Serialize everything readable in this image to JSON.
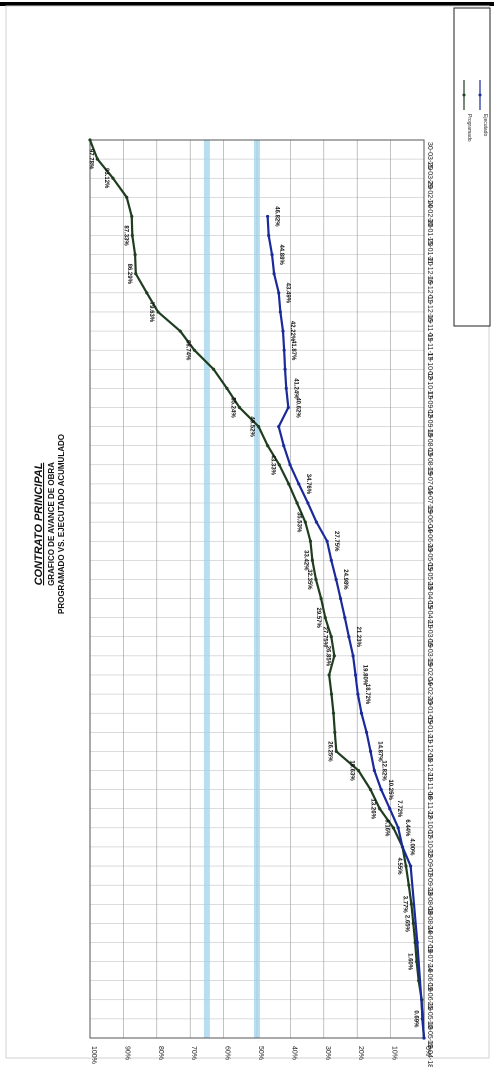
{
  "chart_data": {
    "type": "line",
    "title": "CONTRATO PRINCIPAL",
    "subtitle": [
      "GRAFICO DE AVANCE DE OBRA",
      "PROGRAMADO VS. EJECUTADO ACUMULADO"
    ],
    "x": [
      "19-04-18",
      "10-05-18",
      "25-05-18",
      "09-06-18",
      "24-06-18",
      "09-07-18",
      "24-07-18",
      "08-08-18",
      "23-08-18",
      "07-09-18",
      "22-09-18",
      "07-10-18",
      "22-10-18",
      "06-11-18",
      "21-11-18",
      "06-12-18",
      "21-12-18",
      "05-01-19",
      "20-01-19",
      "04-02-19",
      "19-02-19",
      "06-03-19",
      "21-03-19",
      "05-04-19",
      "20-04-19",
      "05-05-19",
      "20-05-19",
      "04-06-19",
      "19-06-19",
      "04-07-19",
      "19-07-19",
      "03-08-19",
      "18-08-19",
      "02-09-19",
      "17-09-19",
      "02-10-19",
      "17-10-19",
      "01-11-19",
      "16-11-19",
      "01-12-19",
      "16-12-19",
      "31-12-19",
      "15-01-20",
      "30-01-20",
      "14-02-20",
      "29-02-20",
      "15-03-20",
      "30-03-20"
    ],
    "y_ticks": [
      "0%",
      "10%",
      "20%",
      "30%",
      "40%",
      "50%",
      "60%",
      "70%",
      "80%",
      "90%",
      "100%"
    ],
    "ylim": [
      0,
      100
    ],
    "grid": true,
    "series": [
      {
        "name": "Programado",
        "color": "#1f3d1f",
        "points": [
          [
            0,
            0
          ],
          [
            1,
            0.5
          ],
          [
            2,
            0.69
          ],
          [
            3,
            1.6
          ],
          [
            4,
            2.2
          ],
          [
            5,
            2.65
          ],
          [
            6,
            3.2
          ],
          [
            7,
            3.77
          ],
          [
            8,
            4.55
          ],
          [
            9,
            5.4
          ],
          [
            10,
            6.44
          ],
          [
            11,
            9.16
          ],
          [
            12,
            13.26
          ],
          [
            13,
            16.0
          ],
          [
            14,
            19.63
          ],
          [
            15,
            26.25
          ],
          [
            16,
            26.7
          ],
          [
            17,
            27.1
          ],
          [
            18,
            27.7
          ],
          [
            19,
            28.4
          ],
          [
            20,
            26.85
          ],
          [
            21,
            27.75
          ],
          [
            22,
            29.57
          ],
          [
            23,
            30.8
          ],
          [
            24,
            32.35
          ],
          [
            25,
            33.42
          ],
          [
            26,
            34.0
          ],
          [
            27,
            35.53
          ],
          [
            28,
            38.0
          ],
          [
            29,
            40.5
          ],
          [
            30,
            43.33
          ],
          [
            31,
            46.8
          ],
          [
            32,
            49.52
          ],
          [
            33,
            55.24
          ],
          [
            34,
            59.0
          ],
          [
            35,
            63.0
          ],
          [
            36,
            68.74
          ],
          [
            37,
            73.0
          ],
          [
            38,
            79.63
          ],
          [
            39,
            83.0
          ],
          [
            40,
            86.29
          ],
          [
            41,
            86.5
          ],
          [
            42,
            87.33
          ],
          [
            43,
            87.5
          ],
          [
            44,
            89.0
          ],
          [
            45,
            93.12
          ],
          [
            46,
            97.78
          ],
          [
            47,
            100
          ]
        ]
      },
      {
        "name": "Ejecutado",
        "color": "#1a2a9a",
        "points": [
          [
            0,
            0
          ],
          [
            5,
            2.0
          ],
          [
            9,
            4.0
          ],
          [
            10,
            6.44
          ],
          [
            11,
            7.72
          ],
          [
            12,
            10.25
          ],
          [
            13,
            12.82
          ],
          [
            14,
            14.87
          ],
          [
            15,
            16.0
          ],
          [
            16,
            17.2
          ],
          [
            17,
            18.72
          ],
          [
            18,
            19.8
          ],
          [
            19,
            20.5
          ],
          [
            20,
            21.23
          ],
          [
            21,
            22.5
          ],
          [
            22,
            23.7
          ],
          [
            23,
            24.98
          ],
          [
            24,
            26.3
          ],
          [
            25,
            27.75
          ],
          [
            26,
            29.0
          ],
          [
            27,
            32.2
          ],
          [
            28,
            34.76
          ],
          [
            29,
            37.5
          ],
          [
            30,
            40.1
          ],
          [
            31,
            42.0
          ],
          [
            32,
            43.5
          ],
          [
            33,
            40.62
          ],
          [
            34,
            41.24
          ],
          [
            35,
            41.6
          ],
          [
            36,
            41.87
          ],
          [
            37,
            42.22
          ],
          [
            38,
            43.0
          ],
          [
            39,
            43.49
          ],
          [
            40,
            44.88
          ],
          [
            41,
            45.5
          ],
          [
            42,
            46.5
          ],
          [
            43,
            46.82
          ]
        ]
      }
    ],
    "point_labels": [
      {
        "series": 0,
        "i": 1,
        "text": "0.69%"
      },
      {
        "series": 0,
        "i": 4,
        "text": "1.60%"
      },
      {
        "series": 0,
        "i": 6,
        "text": "2.65%"
      },
      {
        "series": 0,
        "i": 7,
        "text": "3.77%"
      },
      {
        "series": 0,
        "i": 9,
        "text": "4.55%"
      },
      {
        "series": 0,
        "i": 11,
        "text": "9.16%"
      },
      {
        "series": 0,
        "i": 12,
        "text": "13.26%"
      },
      {
        "series": 0,
        "i": 14,
        "text": "19.63%"
      },
      {
        "series": 0,
        "i": 15,
        "text": "26.25%"
      },
      {
        "series": 0,
        "i": 20,
        "text": "26.85%"
      },
      {
        "series": 0,
        "i": 21,
        "text": "27.75%"
      },
      {
        "series": 0,
        "i": 22,
        "text": "29.57%"
      },
      {
        "series": 0,
        "i": 24,
        "text": "32.35%"
      },
      {
        "series": 0,
        "i": 25,
        "text": "33.42%"
      },
      {
        "series": 0,
        "i": 27,
        "text": "35.53%"
      },
      {
        "series": 0,
        "i": 30,
        "text": "43.33%"
      },
      {
        "series": 0,
        "i": 32,
        "text": "49.52%"
      },
      {
        "series": 0,
        "i": 33,
        "text": "55.24%"
      },
      {
        "series": 0,
        "i": 36,
        "text": "68.74%"
      },
      {
        "series": 0,
        "i": 38,
        "text": "79.63%"
      },
      {
        "series": 0,
        "i": 40,
        "text": "86.29%"
      },
      {
        "series": 0,
        "i": 42,
        "text": "87.33%"
      },
      {
        "series": 0,
        "i": 45,
        "text": "93.12%"
      },
      {
        "series": 0,
        "i": 46,
        "text": "97.78%"
      },
      {
        "series": 1,
        "i": 3,
        "text": "4.00%"
      },
      {
        "series": 1,
        "i": 4,
        "text": "6.44%"
      },
      {
        "series": 1,
        "i": 5,
        "text": "7.72%"
      },
      {
        "series": 1,
        "i": 6,
        "text": "10.25%"
      },
      {
        "series": 1,
        "i": 7,
        "text": "12.82%"
      },
      {
        "series": 1,
        "i": 8,
        "text": "14.87%"
      },
      {
        "series": 1,
        "i": 11,
        "text": "18.72%"
      },
      {
        "series": 1,
        "i": 12,
        "text": "19.80%"
      },
      {
        "series": 1,
        "i": 14,
        "text": "21.23%"
      },
      {
        "series": 1,
        "i": 17,
        "text": "24.98%"
      },
      {
        "series": 1,
        "i": 19,
        "text": "27.75%"
      },
      {
        "series": 1,
        "i": 22,
        "text": "34.76%"
      },
      {
        "series": 1,
        "i": 26,
        "text": "40.62%"
      },
      {
        "series": 1,
        "i": 27,
        "text": "41.24%"
      },
      {
        "series": 1,
        "i": 29,
        "text": "41.87%"
      },
      {
        "series": 1,
        "i": 30,
        "text": "42.22%"
      },
      {
        "series": 1,
        "i": 32,
        "text": "43.49%"
      },
      {
        "series": 1,
        "i": 34,
        "text": "44.88%"
      },
      {
        "series": 1,
        "i": 36,
        "text": "46.82%"
      }
    ],
    "reference_bands": [
      {
        "y": 50,
        "color": "#9fd3ec"
      },
      {
        "y": 65,
        "color": "#9fd3ec"
      }
    ],
    "legend": {
      "placement": "top-right",
      "entries": [
        {
          "name": "Programado",
          "color": "#1f3d1f"
        },
        {
          "name": "Ejecutado",
          "color": "#1a2a9a"
        }
      ]
    }
  }
}
